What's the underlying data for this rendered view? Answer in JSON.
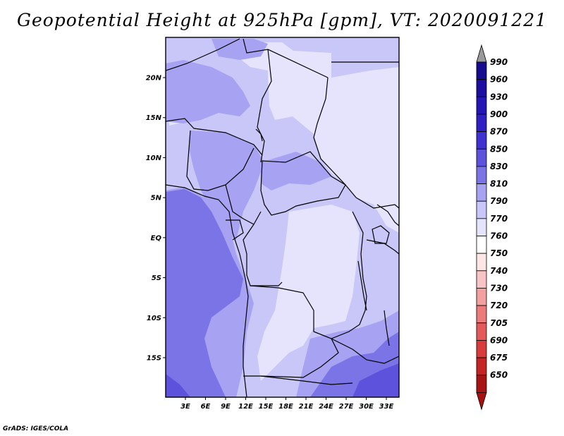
{
  "title": "Geopotential Height at 925hPa [gpm], VT: 2020091221",
  "footer": "GrADS: IGES/COLA",
  "map": {
    "variable": "Geopotential Height",
    "level": "925hPa",
    "units": "gpm",
    "valid_time": "2020091221",
    "lat_range": [
      -20,
      25
    ],
    "lon_range": [
      0,
      35
    ],
    "lat_ticks": [
      {
        "value": 20,
        "label": "20N"
      },
      {
        "value": 15,
        "label": "15N"
      },
      {
        "value": 10,
        "label": "10N"
      },
      {
        "value": 5,
        "label": "5N"
      },
      {
        "value": 0,
        "label": "EQ"
      },
      {
        "value": -5,
        "label": "5S"
      },
      {
        "value": -10,
        "label": "10S"
      },
      {
        "value": -15,
        "label": "15S"
      }
    ],
    "lon_ticks": [
      {
        "value": 3,
        "label": "3E"
      },
      {
        "value": 6,
        "label": "6E"
      },
      {
        "value": 9,
        "label": "9E"
      },
      {
        "value": 12,
        "label": "12E"
      },
      {
        "value": 15,
        "label": "15E"
      },
      {
        "value": 18,
        "label": "18E"
      },
      {
        "value": 21,
        "label": "21E"
      },
      {
        "value": 24,
        "label": "24E"
      },
      {
        "value": 27,
        "label": "27E"
      },
      {
        "value": 30,
        "label": "30E"
      },
      {
        "value": 33,
        "label": "33E"
      }
    ]
  },
  "colorbar": {
    "levels": [
      {
        "label": "990",
        "color": "#160a8e"
      },
      {
        "label": "960",
        "color": "#1c0ea0"
      },
      {
        "label": "930",
        "color": "#2416b4"
      },
      {
        "label": "900",
        "color": "#3020c4"
      },
      {
        "label": "870",
        "color": "#4032d2"
      },
      {
        "label": "850",
        "color": "#5c52dc"
      },
      {
        "label": "830",
        "color": "#7a74e6"
      },
      {
        "label": "810",
        "color": "#a7a2f2"
      },
      {
        "label": "790",
        "color": "#c9c6f8"
      },
      {
        "label": "770",
        "color": "#e6e4fc"
      },
      {
        "label": "760",
        "color": "#ffffff"
      },
      {
        "label": "750",
        "color": "#fde6e6"
      },
      {
        "label": "740",
        "color": "#f8c4c4"
      },
      {
        "label": "730",
        "color": "#f3a0a0"
      },
      {
        "label": "720",
        "color": "#ec7c7c"
      },
      {
        "label": "705",
        "color": "#e45a5a"
      },
      {
        "label": "690",
        "color": "#d83c3c"
      },
      {
        "label": "675",
        "color": "#c42424"
      },
      {
        "label": "650",
        "color": "#a81414"
      }
    ],
    "top_arrow_color": "#9a9a9a",
    "bottom_arrow_color": "#a81010"
  }
}
